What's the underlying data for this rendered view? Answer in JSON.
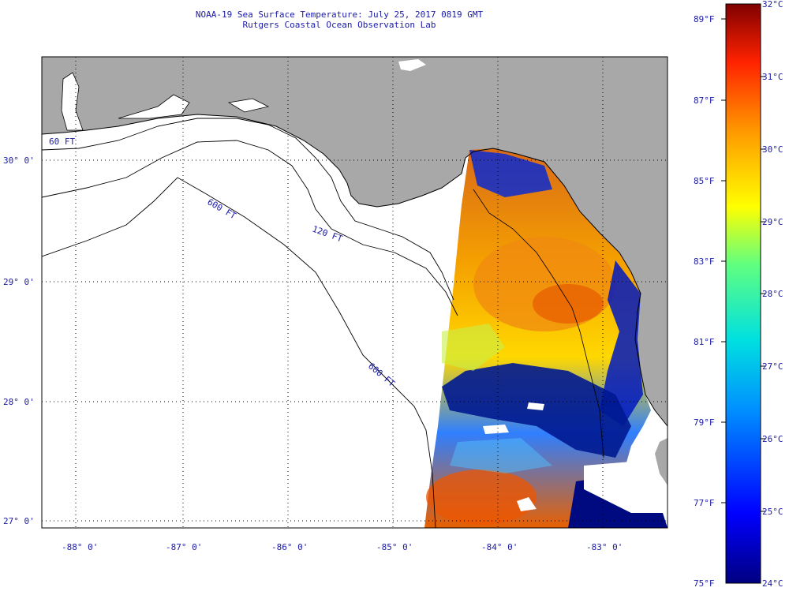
{
  "title": "NOAA-19 Sea Surface Temperature:  July 25, 2017 0819 GMT",
  "subtitle": "Rutgers Coastal Ocean Observation Lab",
  "map": {
    "lat_labels": [
      "30° 0'",
      "29° 0'",
      "28° 0'",
      "27° 0'"
    ],
    "lon_labels": [
      "-88° 0'",
      "-87° 0'",
      "-86° 0'",
      "-85° 0'",
      "-84° 0'",
      "-83° 0'"
    ],
    "contour_labels": [
      "60 FT",
      "120 FT",
      "600 FT",
      "600 FT"
    ],
    "colors": {
      "land": "#a8a8a8",
      "water_nodata": "#ffffff",
      "coast": "#000000",
      "grid": "#000000"
    }
  },
  "colorbar": {
    "fahrenheit_labels": [
      "89°F",
      "87°F",
      "85°F",
      "83°F",
      "81°F",
      "79°F",
      "77°F",
      "75°F"
    ],
    "celsius_labels": [
      "32°C",
      "31°C",
      "30°C",
      "29°C",
      "28°C",
      "27°C",
      "26°C",
      "25°C",
      "24°C"
    ],
    "min_c": 24,
    "max_c": 32,
    "color_stops": [
      "#000080",
      "#0000ff",
      "#00a0ff",
      "#00e0e0",
      "#60ff80",
      "#ffff00",
      "#ff9900",
      "#ff2200",
      "#800000"
    ]
  }
}
